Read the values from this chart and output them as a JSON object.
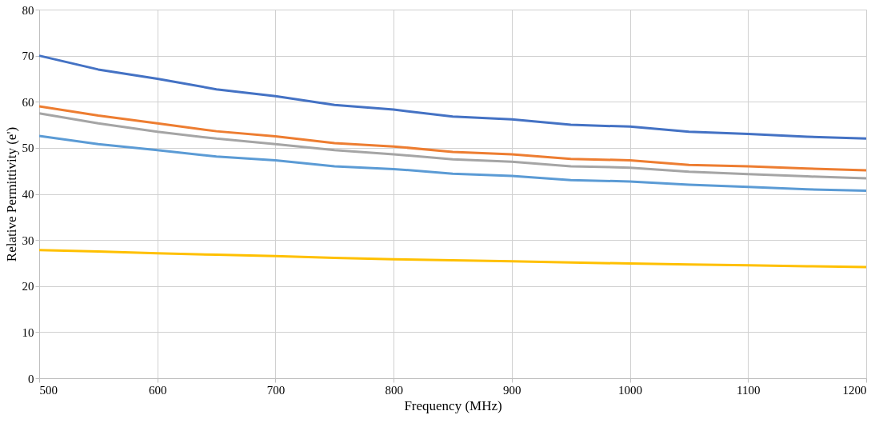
{
  "chart_data": {
    "type": "line",
    "xlabel": "Frequency (MHz)",
    "ylabel": "Relative Permittivity (e')",
    "x": [
      500,
      550,
      600,
      650,
      700,
      750,
      800,
      850,
      900,
      950,
      1000,
      1050,
      1100,
      1150,
      1200
    ],
    "series": [
      {
        "color": "#4472c4",
        "values": [
          70,
          67,
          65,
          62.7,
          61.2,
          59.3,
          58.3,
          56.8,
          56.2,
          55,
          54.6,
          53.5,
          53,
          52.4,
          52
        ]
      },
      {
        "color": "#ed7d31",
        "values": [
          59,
          57,
          55.3,
          53.6,
          52.5,
          51,
          50.3,
          49.1,
          48.6,
          47.6,
          47.3,
          46.3,
          46,
          45.5,
          45.1
        ]
      },
      {
        "color": "#a5a5a5",
        "values": [
          57.5,
          55.3,
          53.5,
          52,
          50.8,
          49.5,
          48.6,
          47.5,
          47,
          46,
          45.7,
          44.8,
          44.3,
          43.8,
          43.4
        ]
      },
      {
        "color": "#5b9bd5",
        "values": [
          52.6,
          50.8,
          49.5,
          48.1,
          47.3,
          46,
          45.4,
          44.4,
          43.9,
          43,
          42.7,
          42,
          41.5,
          41,
          40.7
        ]
      },
      {
        "color": "#ffc000",
        "values": [
          27.8,
          27.5,
          27.1,
          26.8,
          26.5,
          26.1,
          25.8,
          25.6,
          25.4,
          25.1,
          24.9,
          24.7,
          24.5,
          24.3,
          24.1
        ]
      }
    ],
    "xlim": [
      500,
      1200
    ],
    "xticks": [
      500,
      600,
      700,
      800,
      900,
      1000,
      1100,
      1200
    ],
    "ylim": [
      0,
      80
    ],
    "yticks": [
      0,
      10,
      20,
      30,
      40,
      50,
      60,
      70,
      80
    ],
    "grid": true,
    "legend": false,
    "marker": "none",
    "line_style": "solid"
  }
}
